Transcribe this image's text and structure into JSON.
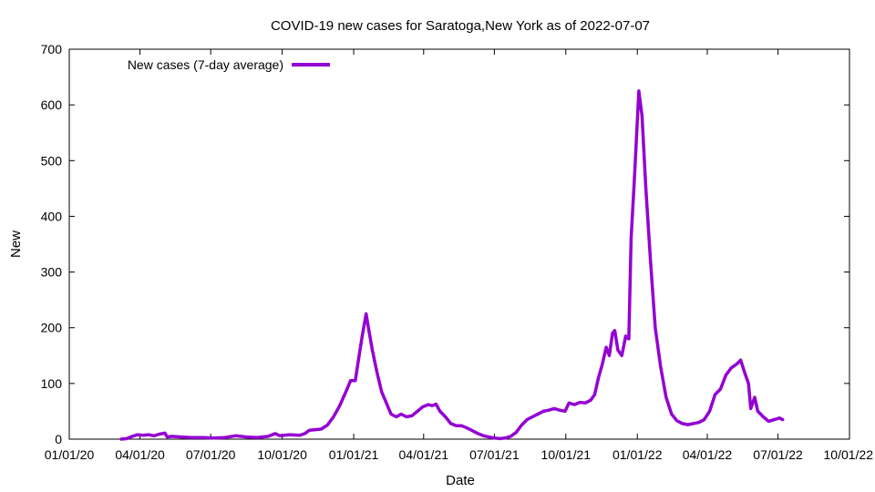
{
  "chart_data": {
    "type": "line",
    "title": "COVID-19 new cases for Saratoga,New York as of 2022-07-07",
    "xlabel": "Date",
    "ylabel": "New",
    "x_axis_type": "date",
    "xlim": [
      "2020-01-01",
      "2022-10-01"
    ],
    "ylim": [
      0,
      700
    ],
    "x_ticks": [
      {
        "date": "2020-01-01",
        "label": "01/01/20"
      },
      {
        "date": "2020-04-01",
        "label": "04/01/20"
      },
      {
        "date": "2020-07-01",
        "label": "07/01/20"
      },
      {
        "date": "2020-10-01",
        "label": "10/01/20"
      },
      {
        "date": "2021-01-01",
        "label": "01/01/21"
      },
      {
        "date": "2021-04-01",
        "label": "04/01/21"
      },
      {
        "date": "2021-07-01",
        "label": "07/01/21"
      },
      {
        "date": "2021-10-01",
        "label": "10/01/21"
      },
      {
        "date": "2022-01-01",
        "label": "01/01/22"
      },
      {
        "date": "2022-04-01",
        "label": "04/01/22"
      },
      {
        "date": "2022-07-01",
        "label": "07/01/22"
      },
      {
        "date": "2022-10-01",
        "label": "10/01/22"
      }
    ],
    "y_ticks": [
      0,
      100,
      200,
      300,
      400,
      500,
      600,
      700
    ],
    "grid": false,
    "legend_position": "top-left",
    "series": [
      {
        "name": "New cases (7-day average)",
        "color": "#9400d3",
        "points": [
          [
            "2020-03-08",
            0
          ],
          [
            "2020-03-15",
            1
          ],
          [
            "2020-03-22",
            5
          ],
          [
            "2020-03-29",
            8
          ],
          [
            "2020-04-05",
            7
          ],
          [
            "2020-04-12",
            8
          ],
          [
            "2020-04-19",
            6
          ],
          [
            "2020-04-26",
            9
          ],
          [
            "2020-05-03",
            11
          ],
          [
            "2020-05-06",
            4
          ],
          [
            "2020-05-12",
            5
          ],
          [
            "2020-05-24",
            4
          ],
          [
            "2020-06-07",
            3
          ],
          [
            "2020-06-21",
            3
          ],
          [
            "2020-07-05",
            2
          ],
          [
            "2020-07-19",
            3
          ],
          [
            "2020-08-02",
            6
          ],
          [
            "2020-08-16",
            4
          ],
          [
            "2020-08-30",
            3
          ],
          [
            "2020-09-13",
            5
          ],
          [
            "2020-09-22",
            10
          ],
          [
            "2020-09-28",
            6
          ],
          [
            "2020-10-10",
            8
          ],
          [
            "2020-10-24",
            7
          ],
          [
            "2020-10-30",
            10
          ],
          [
            "2020-11-05",
            16
          ],
          [
            "2020-11-20",
            18
          ],
          [
            "2020-11-28",
            25
          ],
          [
            "2020-12-06",
            40
          ],
          [
            "2020-12-14",
            60
          ],
          [
            "2020-12-22",
            85
          ],
          [
            "2020-12-28",
            105
          ],
          [
            "2021-01-03",
            105
          ],
          [
            "2021-01-08",
            150
          ],
          [
            "2021-01-12",
            185
          ],
          [
            "2021-01-17",
            225
          ],
          [
            "2021-01-20",
            200
          ],
          [
            "2021-01-25",
            160
          ],
          [
            "2021-01-31",
            120
          ],
          [
            "2021-02-06",
            85
          ],
          [
            "2021-02-12",
            65
          ],
          [
            "2021-02-18",
            45
          ],
          [
            "2021-02-25",
            40
          ],
          [
            "2021-03-03",
            45
          ],
          [
            "2021-03-10",
            40
          ],
          [
            "2021-03-17",
            42
          ],
          [
            "2021-03-24",
            50
          ],
          [
            "2021-03-31",
            58
          ],
          [
            "2021-04-07",
            62
          ],
          [
            "2021-04-12",
            60
          ],
          [
            "2021-04-17",
            63
          ],
          [
            "2021-04-22",
            50
          ],
          [
            "2021-04-29",
            40
          ],
          [
            "2021-05-06",
            28
          ],
          [
            "2021-05-13",
            24
          ],
          [
            "2021-05-20",
            24
          ],
          [
            "2021-05-27",
            20
          ],
          [
            "2021-06-03",
            15
          ],
          [
            "2021-06-10",
            10
          ],
          [
            "2021-06-17",
            6
          ],
          [
            "2021-06-24",
            4
          ],
          [
            "2021-07-01",
            2
          ],
          [
            "2021-07-08",
            1
          ],
          [
            "2021-07-15",
            2
          ],
          [
            "2021-07-22",
            5
          ],
          [
            "2021-07-29",
            12
          ],
          [
            "2021-08-05",
            25
          ],
          [
            "2021-08-12",
            35
          ],
          [
            "2021-08-19",
            40
          ],
          [
            "2021-08-26",
            45
          ],
          [
            "2021-09-02",
            50
          ],
          [
            "2021-09-09",
            52
          ],
          [
            "2021-09-16",
            55
          ],
          [
            "2021-09-23",
            52
          ],
          [
            "2021-09-30",
            50
          ],
          [
            "2021-10-05",
            65
          ],
          [
            "2021-10-12",
            62
          ],
          [
            "2021-10-19",
            66
          ],
          [
            "2021-10-26",
            65
          ],
          [
            "2021-11-02",
            70
          ],
          [
            "2021-11-07",
            80
          ],
          [
            "2021-11-12",
            110
          ],
          [
            "2021-11-17",
            135
          ],
          [
            "2021-11-22",
            165
          ],
          [
            "2021-11-26",
            150
          ],
          [
            "2021-11-30",
            190
          ],
          [
            "2021-12-03",
            195
          ],
          [
            "2021-12-07",
            160
          ],
          [
            "2021-12-12",
            150
          ],
          [
            "2021-12-17",
            185
          ],
          [
            "2021-12-21",
            180
          ],
          [
            "2021-12-24",
            360
          ],
          [
            "2021-12-28",
            460
          ],
          [
            "2022-01-03",
            625
          ],
          [
            "2022-01-07",
            580
          ],
          [
            "2022-01-12",
            450
          ],
          [
            "2022-01-18",
            320
          ],
          [
            "2022-01-24",
            200
          ],
          [
            "2022-01-31",
            130
          ],
          [
            "2022-02-07",
            75
          ],
          [
            "2022-02-14",
            45
          ],
          [
            "2022-02-21",
            33
          ],
          [
            "2022-02-28",
            28
          ],
          [
            "2022-03-07",
            26
          ],
          [
            "2022-03-14",
            28
          ],
          [
            "2022-03-21",
            30
          ],
          [
            "2022-03-28",
            35
          ],
          [
            "2022-04-04",
            50
          ],
          [
            "2022-04-11",
            80
          ],
          [
            "2022-04-18",
            90
          ],
          [
            "2022-04-25",
            115
          ],
          [
            "2022-05-02",
            128
          ],
          [
            "2022-05-09",
            135
          ],
          [
            "2022-05-14",
            142
          ],
          [
            "2022-05-19",
            120
          ],
          [
            "2022-05-24",
            100
          ],
          [
            "2022-05-27",
            55
          ],
          [
            "2022-06-01",
            75
          ],
          [
            "2022-06-05",
            50
          ],
          [
            "2022-06-12",
            40
          ],
          [
            "2022-06-19",
            32
          ],
          [
            "2022-06-26",
            35
          ],
          [
            "2022-07-03",
            38
          ],
          [
            "2022-07-07",
            35
          ]
        ]
      }
    ]
  }
}
